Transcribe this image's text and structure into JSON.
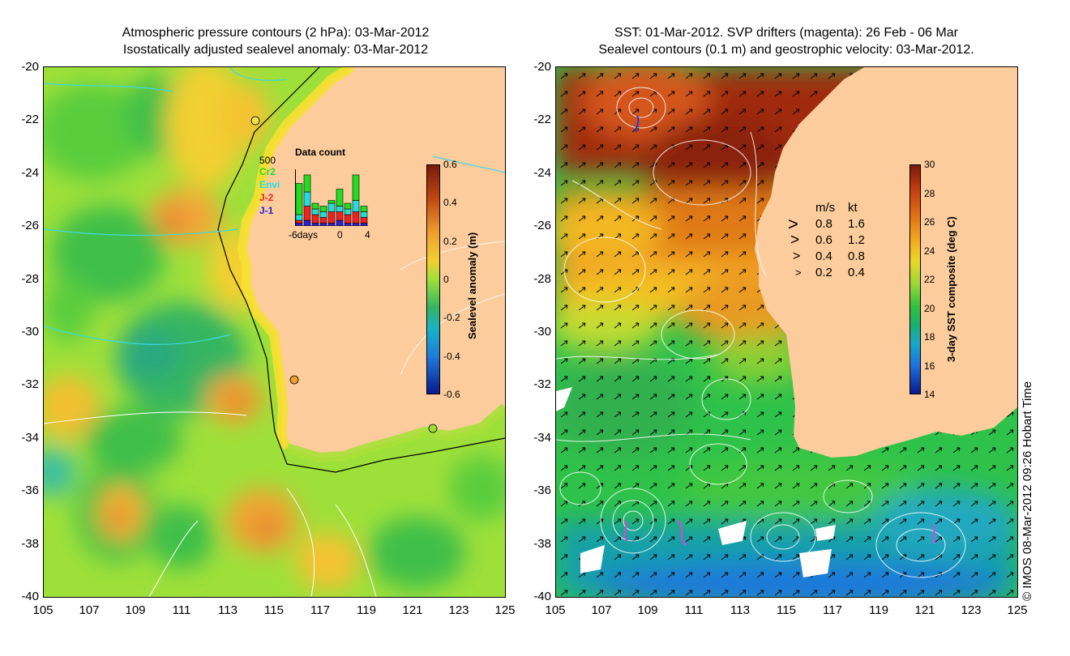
{
  "left_panel": {
    "title_line1": "Atmospheric pressure contours (2 hPa): 03-Mar-2012",
    "title_line2": "Isostatically adjusted sealevel anomaly: 03-Mar-2012",
    "y_ticks": [
      "-20",
      "-22",
      "-24",
      "-26",
      "-28",
      "-30",
      "-32",
      "-34",
      "-36",
      "-38",
      "-40"
    ],
    "x_ticks": [
      "105",
      "107",
      "109",
      "111",
      "113",
      "115",
      "117",
      "119",
      "121",
      "123",
      "125"
    ],
    "colorbar": {
      "label": "Sealevel anomaly (m)",
      "ticks": [
        "0.6",
        "0.4",
        "0.2",
        "0",
        "-0.2",
        "-0.4",
        "-0.6"
      ]
    },
    "data_count": {
      "title": "Data count",
      "max_label": "500",
      "missions": [
        {
          "name": "Cr2",
          "color": "#22dd22"
        },
        {
          "name": "Envi",
          "color": "#22dddd"
        },
        {
          "name": "J-2",
          "color": "#ee2222"
        },
        {
          "name": "J-1",
          "color": "#2222dd"
        }
      ],
      "x_labels": [
        "-6days",
        "0",
        "4"
      ],
      "bars": [
        {
          "cr2": 0.55,
          "envi": 0.1,
          "j2": 0.05,
          "j1": 0.05
        },
        {
          "cr2": 0.3,
          "envi": 0.25,
          "j2": 0.25,
          "j1": 0.1
        },
        {
          "cr2": 0.1,
          "envi": 0.1,
          "j2": 0.15,
          "j1": 0.05
        },
        {
          "cr2": 0.1,
          "envi": 0.1,
          "j2": 0.1,
          "j1": 0.05
        },
        {
          "cr2": 0.05,
          "envi": 0.15,
          "j2": 0.2,
          "j1": 0.05
        },
        {
          "cr2": 0.3,
          "envi": 0.1,
          "j2": 0.15,
          "j1": 0.1
        },
        {
          "cr2": 0.1,
          "envi": 0.1,
          "j2": 0.15,
          "j1": 0.05
        },
        {
          "cr2": 0.45,
          "envi": 0.2,
          "j2": 0.2,
          "j1": 0.05
        },
        {
          "cr2": 0.1,
          "envi": 0.1,
          "j2": 0.1,
          "j1": 0.05
        }
      ]
    }
  },
  "right_panel": {
    "title_line1": "SST: 01-Mar-2012. SVP drifters (magenta): 26 Feb - 06 Mar",
    "title_line2": "Sealevel contours (0.1 m) and geostrophic velocity: 03-Mar-2012.",
    "y_ticks": [
      "-20",
      "-22",
      "-24",
      "-26",
      "-28",
      "-30",
      "-32",
      "-34",
      "-36",
      "-38",
      "-40"
    ],
    "x_ticks": [
      "105",
      "107",
      "109",
      "111",
      "113",
      "115",
      "117",
      "119",
      "121",
      "123",
      "125"
    ],
    "colorbar": {
      "label": "3-day SST composite (deg C)",
      "ticks": [
        "30",
        "28",
        "26",
        "24",
        "22",
        "20",
        "18",
        "16",
        "14"
      ]
    },
    "velocity_legend": {
      "header_ms": "m/s",
      "header_kt": "kt",
      "rows": [
        {
          "ms": "0.8",
          "kt": "1.6"
        },
        {
          "ms": "0.6",
          "kt": "1.2"
        },
        {
          "ms": "0.4",
          "kt": "0.8"
        },
        {
          "ms": "0.2",
          "kt": "0.4"
        }
      ]
    },
    "credit": "© IMOS 08-Mar-2012 09:26 Hobart Time"
  },
  "colors": {
    "land": "#fccc9c",
    "contour": "#ffffff"
  }
}
